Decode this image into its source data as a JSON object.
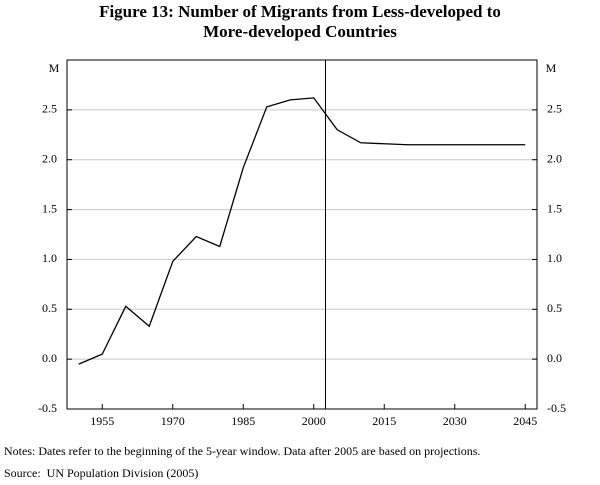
{
  "chart_data": {
    "type": "line",
    "title": "Figure 13: Number of Migrants from Less-developed to",
    "subtitle": "More-developed Countries",
    "y_unit": "M",
    "x": [
      1950,
      1955,
      1960,
      1965,
      1970,
      1975,
      1980,
      1985,
      1990,
      1995,
      2000,
      2005,
      2010,
      2015,
      2020,
      2025,
      2030,
      2035,
      2040,
      2045
    ],
    "series": [
      {
        "name": "Migrants",
        "color": "#000000",
        "values": [
          -0.05,
          0.05,
          0.53,
          0.33,
          0.98,
          1.23,
          1.13,
          1.92,
          2.53,
          2.6,
          2.62,
          2.3,
          2.17,
          2.16,
          2.15,
          2.15,
          2.15,
          2.15,
          2.15,
          2.15
        ]
      }
    ],
    "xlim": [
      1947.5,
      2047.5
    ],
    "xticks": [
      1955,
      1970,
      1985,
      2000,
      2015,
      2030,
      2045
    ],
    "ylim": [
      -0.5,
      3.0
    ],
    "yticks": [
      -0.5,
      {
        "value": 0,
        "label": "0.0"
      },
      0.5,
      {
        "value": 1,
        "label": "1.0"
      },
      1.5,
      {
        "value": 2,
        "label": "2.0"
      },
      2.5
    ],
    "grid": true,
    "divider_x": 2002.5,
    "notes": "Notes:   Dates refer to the beginning of the 5-year window. Data after 2005 are based on projections.",
    "source": "Source:  UN Population Division (2005)"
  }
}
